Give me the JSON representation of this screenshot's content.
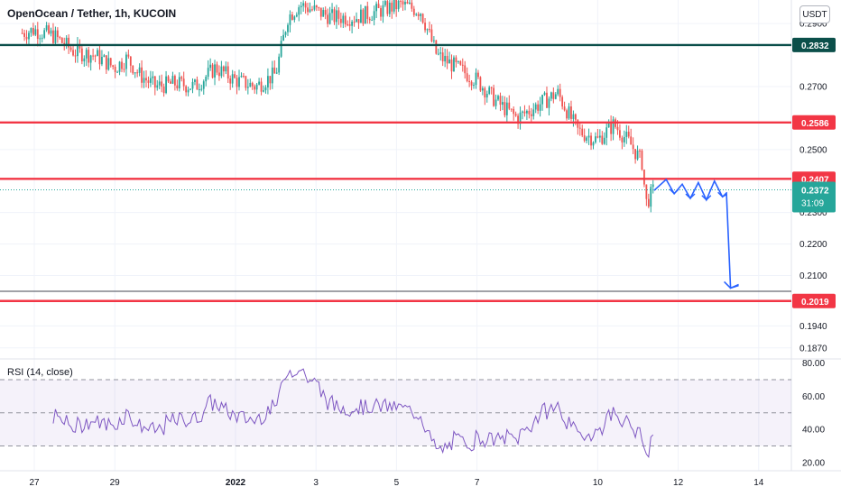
{
  "header": {
    "symbol_title": "OpenOcean / Tether, 1h, KUCOIN",
    "currency_button": "USDT"
  },
  "chart_data": [
    {
      "type": "candlestick",
      "title": "OpenOcean / Tether, 1h, KUCOIN",
      "ylim": [
        0.1835,
        0.2975
      ],
      "y_ticks": [
        "0.2900",
        "0.2700",
        "0.2500",
        "0.2300",
        "0.2200",
        "0.2100",
        "0.1940",
        "0.1870"
      ],
      "x_ticks": [
        {
          "label": "27",
          "day": 0
        },
        {
          "label": "29",
          "day": 2
        },
        {
          "label": "2022",
          "day": 5
        },
        {
          "label": "3",
          "day": 7
        },
        {
          "label": "5",
          "day": 9
        },
        {
          "label": "7",
          "day": 11
        },
        {
          "label": "10",
          "day": 14
        },
        {
          "label": "12",
          "day": 16
        },
        {
          "label": "14",
          "day": 18
        }
      ],
      "price_path": [
        [
          -0.3,
          0.287
        ],
        [
          0.0,
          0.288
        ],
        [
          0.5,
          0.286
        ],
        [
          1.0,
          0.281
        ],
        [
          1.5,
          0.28
        ],
        [
          2.0,
          0.276
        ],
        [
          2.3,
          0.279
        ],
        [
          2.6,
          0.274
        ],
        [
          3.0,
          0.27
        ],
        [
          3.5,
          0.271
        ],
        [
          4.0,
          0.27
        ],
        [
          4.5,
          0.276
        ],
        [
          5.0,
          0.272
        ],
        [
          5.5,
          0.27
        ],
        [
          6.0,
          0.274
        ],
        [
          6.3,
          0.292
        ],
        [
          6.6,
          0.296
        ],
        [
          7.0,
          0.294
        ],
        [
          7.4,
          0.292
        ],
        [
          8.0,
          0.292
        ],
        [
          9.1,
          0.296
        ],
        [
          9.6,
          0.294
        ],
        [
          10.0,
          0.28
        ],
        [
          10.5,
          0.276
        ],
        [
          11.0,
          0.272
        ],
        [
          11.5,
          0.265
        ],
        [
          12.0,
          0.26
        ],
        [
          12.5,
          0.264
        ],
        [
          13.0,
          0.268
        ],
        [
          13.5,
          0.256
        ],
        [
          14.0,
          0.253
        ],
        [
          14.4,
          0.258
        ],
        [
          14.8,
          0.252
        ],
        [
          15.1,
          0.246
        ],
        [
          15.2,
          0.233
        ],
        [
          15.4,
          0.2372
        ]
      ],
      "horizontal_levels": [
        {
          "price": 0.2832,
          "label": "0.2832",
          "color": "#0b4f4a",
          "style": "thick"
        },
        {
          "price": 0.2586,
          "label": "0.2586",
          "color": "#f23645",
          "style": "thick"
        },
        {
          "price": 0.2407,
          "label": "0.2407",
          "color": "#f23645",
          "style": "thick"
        },
        {
          "price": 0.2372,
          "label": "0.2372",
          "color": "#26a69a",
          "style": "dotted",
          "countdown": "31:09"
        },
        {
          "price": 0.205,
          "label": "",
          "color": "#434651",
          "style": "thin"
        },
        {
          "price": 0.2019,
          "label": "0.2019",
          "color": "#f23645",
          "style": "thick"
        }
      ],
      "projection_path": [
        [
          15.4,
          0.237
        ],
        [
          15.7,
          0.2405
        ],
        [
          15.9,
          0.236
        ],
        [
          16.1,
          0.239
        ],
        [
          16.3,
          0.2345
        ],
        [
          16.5,
          0.2395
        ],
        [
          16.7,
          0.234
        ],
        [
          16.9,
          0.24
        ],
        [
          17.1,
          0.235
        ],
        [
          17.2,
          0.2358
        ],
        [
          17.3,
          0.206
        ],
        [
          17.5,
          0.2068
        ]
      ],
      "colors": {
        "up": "#26a69a",
        "down": "#ef5350",
        "projection": "#2962ff"
      }
    },
    {
      "type": "line",
      "title": "RSI (14, close)",
      "ylim": [
        15,
        82
      ],
      "y_ticks": [
        "80.00",
        "60.00",
        "40.00",
        "20.00"
      ],
      "bands": [
        70,
        50,
        30
      ],
      "series": [
        {
          "name": "RSI (14, close)",
          "color": "#7e57c2"
        }
      ]
    }
  ]
}
